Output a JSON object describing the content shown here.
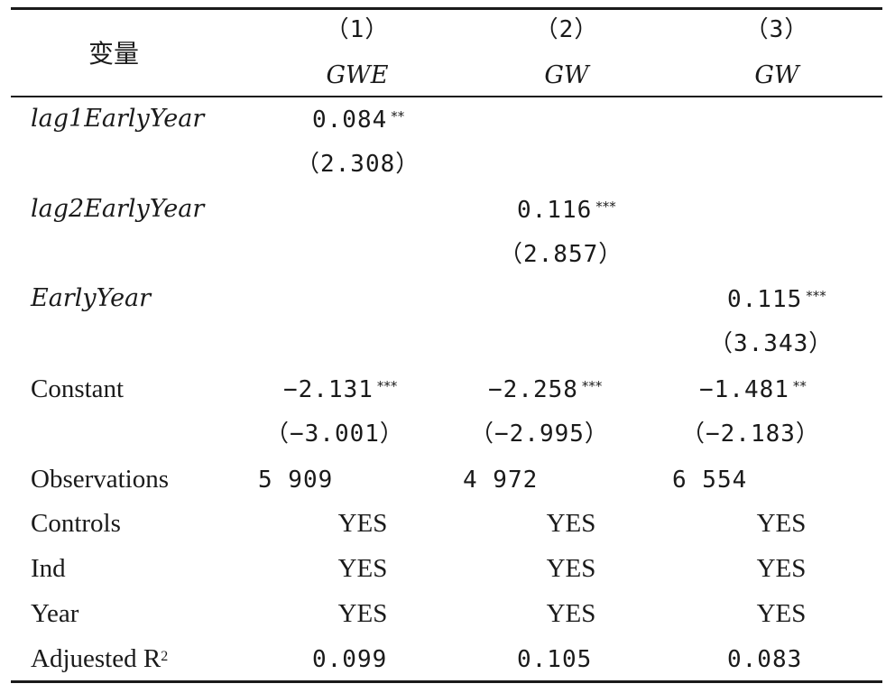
{
  "table": {
    "header": {
      "variable_label": "变量",
      "columns": [
        {
          "number": "（1）",
          "dependent": "GWE"
        },
        {
          "number": "（2）",
          "dependent": "GW"
        },
        {
          "number": "（3）",
          "dependent": "GW"
        }
      ]
    },
    "rows": {
      "lag1": {
        "label": "lag1EarlyYear",
        "coef": "0.084",
        "stars": "**",
        "t": "（2.308）"
      },
      "lag2": {
        "label": "lag2EarlyYear",
        "coef": "0.116",
        "stars": "***",
        "t": "（2.857）"
      },
      "early": {
        "label": "EarlyYear",
        "coef": "0.115",
        "stars": "***",
        "t": "（3.343）"
      },
      "constant": {
        "label": "Constant",
        "cells": [
          {
            "coef": "−2.131",
            "stars": "***",
            "t": "（−3.001）"
          },
          {
            "coef": "−2.258",
            "stars": "***",
            "t": "（−2.995）"
          },
          {
            "coef": "−1.481",
            "stars": "**",
            "t": "（−2.183）"
          }
        ]
      },
      "observations": {
        "label": "Observations",
        "values": [
          "5 909",
          "4 972",
          "6 554"
        ]
      },
      "controls": {
        "label": "Controls",
        "values": [
          "YES",
          "YES",
          "YES"
        ]
      },
      "ind": {
        "label": "Ind",
        "values": [
          "YES",
          "YES",
          "YES"
        ]
      },
      "year": {
        "label": "Year",
        "values": [
          "YES",
          "YES",
          "YES"
        ]
      },
      "r2": {
        "label": "Adjuested R",
        "label_sup": "2",
        "values": [
          "0.099",
          "0.105",
          "0.083"
        ]
      }
    }
  }
}
